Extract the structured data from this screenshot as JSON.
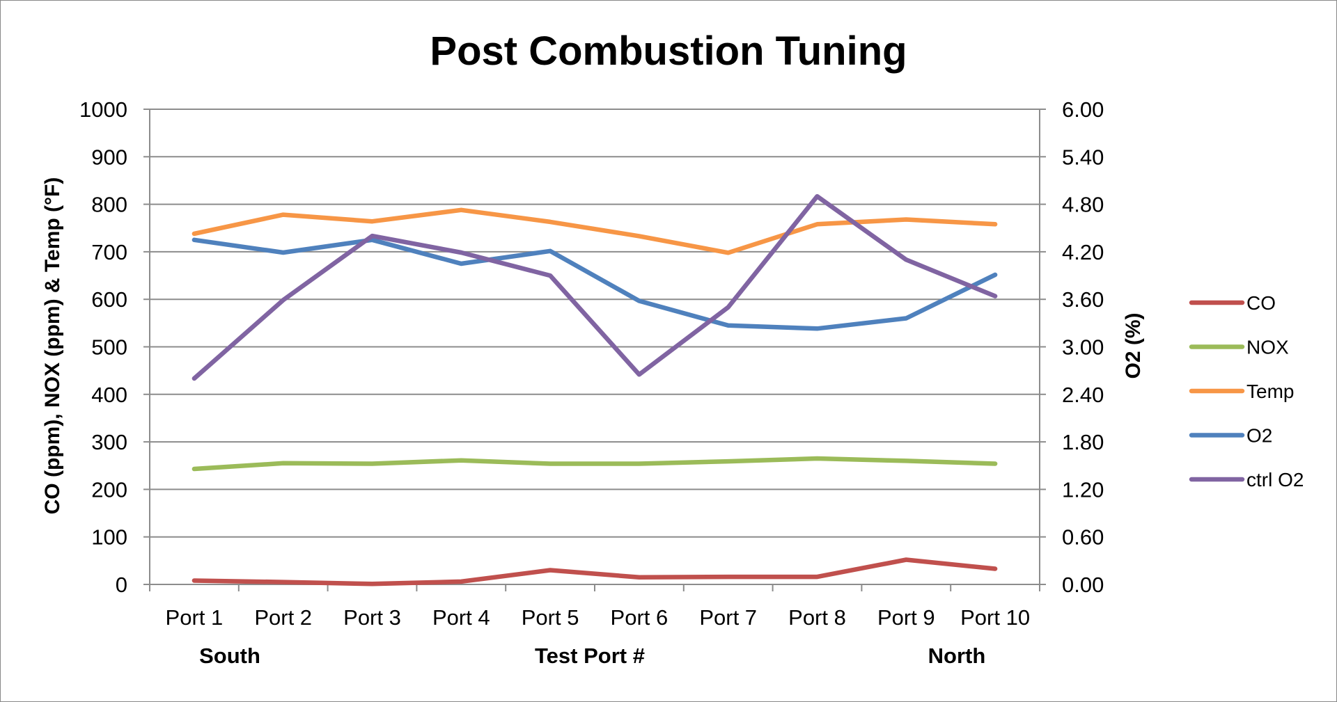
{
  "chart_data": {
    "type": "line",
    "title": "Post Combustion Tuning",
    "xlabel": "Test Port #",
    "ylabel": "CO (ppm), NOX (ppm) & Temp (°F)",
    "y2label": "O2 (%)",
    "categories": [
      "Port 1",
      "Port 2",
      "Port 3",
      "Port 4",
      "Port 5",
      "Port 6",
      "Port 7",
      "Port 8",
      "Port 9",
      "Port 10"
    ],
    "ylim": [
      0,
      1000
    ],
    "y2lim": [
      0,
      6
    ],
    "yticks": [
      "0",
      "100",
      "200",
      "300",
      "400",
      "500",
      "600",
      "700",
      "800",
      "900",
      "1000"
    ],
    "y2ticks": [
      "0.00",
      "0.60",
      "1.20",
      "1.80",
      "2.40",
      "3.00",
      "3.60",
      "4.20",
      "4.80",
      "5.40",
      "6.00"
    ],
    "annotations": {
      "south": "South",
      "north": "North"
    },
    "legend_position": "right",
    "grid": true,
    "series": [
      {
        "name": "CO",
        "axis": "left",
        "color": "#c0504d",
        "values": [
          8,
          5,
          1,
          6,
          30,
          15,
          16,
          16,
          52,
          33
        ]
      },
      {
        "name": "NOX",
        "axis": "left",
        "color": "#9bbb59",
        "values": [
          243,
          255,
          254,
          261,
          254,
          254,
          259,
          265,
          260,
          254
        ]
      },
      {
        "name": "Temp",
        "axis": "left",
        "color": "#f79646",
        "values": [
          738,
          778,
          764,
          788,
          763,
          733,
          698,
          758,
          768,
          758
        ]
      },
      {
        "name": "O2",
        "axis": "right",
        "color": "#4f81bd",
        "values": [
          4.35,
          4.19,
          4.35,
          4.05,
          4.21,
          3.58,
          3.27,
          3.23,
          3.36,
          3.91
        ]
      },
      {
        "name": "ctrl O2",
        "axis": "right",
        "color": "#8064a2",
        "values": [
          2.6,
          3.59,
          4.4,
          4.19,
          3.9,
          2.65,
          3.5,
          4.9,
          4.1,
          3.64
        ]
      }
    ]
  }
}
